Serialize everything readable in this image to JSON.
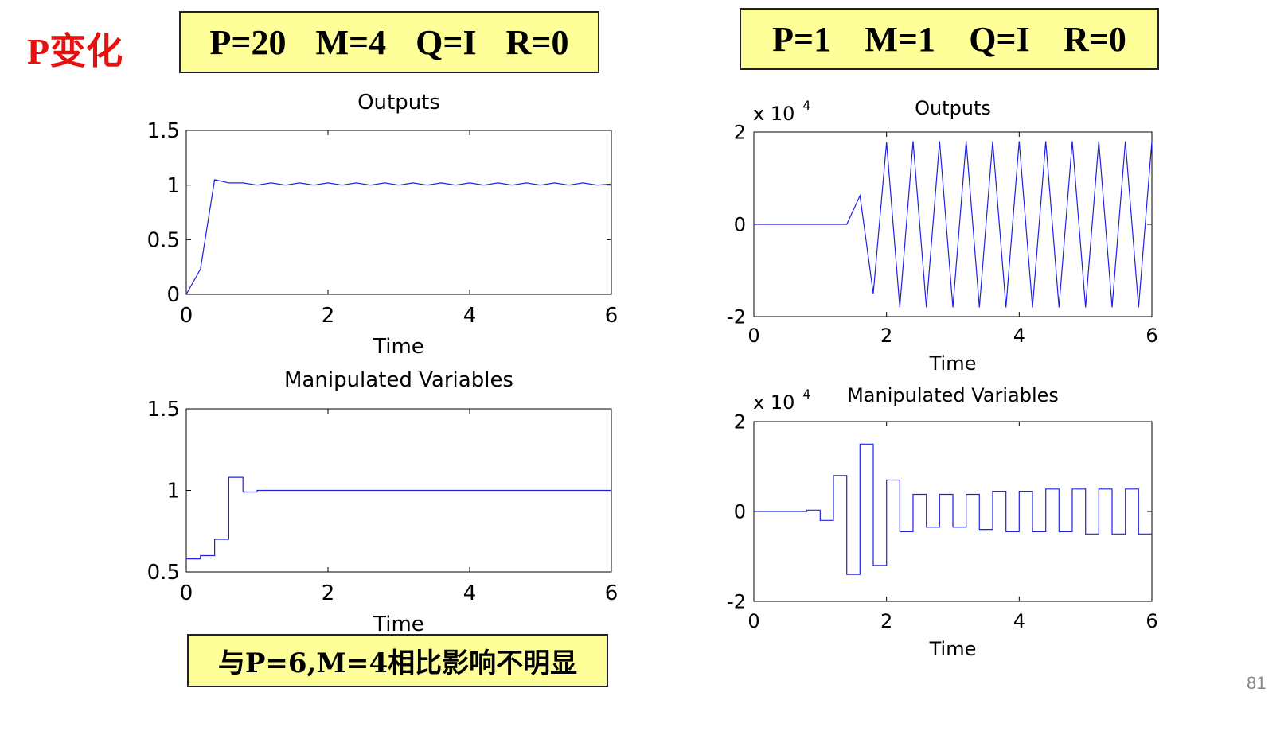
{
  "slide_title": "P变化",
  "left_params": [
    "P=20",
    "M=4",
    "Q=I",
    "R=0"
  ],
  "right_params": [
    "P=1",
    "M=1",
    "Q=I",
    "R=0"
  ],
  "note": "与P=6,M=4相比影响不明显",
  "page_number": "81",
  "colors": {
    "line": "#2020e0",
    "box_fill": "#ffff99",
    "title": "#e8110f"
  },
  "chart_data": [
    {
      "id": "left-outputs",
      "type": "line",
      "title": "Outputs",
      "xlabel": "Time",
      "ylabel": "",
      "xlim": [
        0,
        6
      ],
      "ylim": [
        0,
        1.5
      ],
      "xticks": [
        0,
        2,
        4,
        6
      ],
      "xtick_labels": [
        "0",
        "2",
        "4",
        "6"
      ],
      "yticks": [
        0,
        0.5,
        1,
        1.5
      ],
      "ytick_labels": [
        "0",
        "0.5",
        "1",
        "1.5"
      ],
      "multiplier": "",
      "x": [
        0,
        0.2,
        0.4,
        0.6,
        0.8,
        1.0,
        1.2,
        1.4,
        1.6,
        1.8,
        2.0,
        2.2,
        2.4,
        2.6,
        2.8,
        3.0,
        3.2,
        3.4,
        3.6,
        3.8,
        4.0,
        4.2,
        4.4,
        4.6,
        4.8,
        5.0,
        5.2,
        5.4,
        5.6,
        5.8,
        6.0
      ],
      "y": [
        0,
        0.23,
        1.05,
        1.02,
        1.02,
        1.0,
        1.02,
        1.0,
        1.02,
        1.0,
        1.02,
        1.0,
        1.02,
        1.0,
        1.02,
        1.0,
        1.02,
        1.0,
        1.02,
        1.0,
        1.02,
        1.0,
        1.02,
        1.0,
        1.02,
        1.0,
        1.02,
        1.0,
        1.02,
        1.0,
        1.01
      ],
      "step": false
    },
    {
      "id": "left-mv",
      "type": "line",
      "title": "Manipulated Variables",
      "xlabel": "Time",
      "ylabel": "",
      "xlim": [
        0,
        6
      ],
      "ylim": [
        0.5,
        1.5
      ],
      "xticks": [
        0,
        2,
        4,
        6
      ],
      "xtick_labels": [
        "0",
        "2",
        "4",
        "6"
      ],
      "yticks": [
        0.5,
        1,
        1.5
      ],
      "ytick_labels": [
        "0.5",
        "1",
        "1.5"
      ],
      "multiplier": "",
      "x": [
        0,
        0.2,
        0.4,
        0.6,
        0.8,
        1.0,
        6.0
      ],
      "y": [
        0.58,
        0.6,
        0.7,
        1.08,
        0.99,
        1.0,
        1.0
      ],
      "step": true
    },
    {
      "id": "right-outputs",
      "type": "line",
      "title": "Outputs",
      "xlabel": "Time",
      "ylabel": "",
      "xlim": [
        0,
        6
      ],
      "ylim": [
        -20000,
        20000
      ],
      "xticks": [
        0,
        2,
        4,
        6
      ],
      "xtick_labels": [
        "0",
        "2",
        "4",
        "6"
      ],
      "yticks": [
        -20000,
        0,
        20000
      ],
      "ytick_labels": [
        "-2",
        "0",
        "2"
      ],
      "multiplier": "x 10",
      "multiplier_exp": "4",
      "x": [
        0,
        1.4,
        1.6,
        1.8,
        2.0,
        2.2,
        2.4,
        2.6,
        2.8,
        3.0,
        3.2,
        3.4,
        3.6,
        3.8,
        4.0,
        4.2,
        4.4,
        4.6,
        4.8,
        5.0,
        5.2,
        5.4,
        5.6,
        5.8,
        6.0
      ],
      "y": [
        0,
        0,
        6200,
        -15000,
        17800,
        -18000,
        18000,
        -18000,
        18000,
        -18000,
        18000,
        -18000,
        18000,
        -18000,
        18000,
        -18000,
        18000,
        -18000,
        18000,
        -18000,
        18000,
        -18000,
        18000,
        -18000,
        18000
      ],
      "step": false
    },
    {
      "id": "right-mv",
      "type": "line",
      "title": "Manipulated Variables",
      "xlabel": "Time",
      "ylabel": "",
      "xlim": [
        0,
        6
      ],
      "ylim": [
        -20000,
        20000
      ],
      "xticks": [
        0,
        2,
        4,
        6
      ],
      "xtick_labels": [
        "0",
        "2",
        "4",
        "6"
      ],
      "yticks": [
        -20000,
        0,
        20000
      ],
      "ytick_labels": [
        "-2",
        "0",
        "2"
      ],
      "multiplier": "x 10",
      "multiplier_exp": "4",
      "x": [
        0,
        0.8,
        1.0,
        1.2,
        1.4,
        1.6,
        1.8,
        2.0,
        2.2,
        2.4,
        2.6,
        2.8,
        3.0,
        3.2,
        3.4,
        3.6,
        3.8,
        4.0,
        4.2,
        4.4,
        4.6,
        4.8,
        5.0,
        5.2,
        5.4,
        5.6,
        5.8,
        6.0
      ],
      "y": [
        0,
        300,
        -2000,
        8000,
        -14000,
        15000,
        -12000,
        7000,
        -4500,
        3800,
        -3500,
        3800,
        -3500,
        3800,
        -4000,
        4500,
        -4500,
        4500,
        -4500,
        5000,
        -4500,
        5000,
        -5000,
        5000,
        -5000,
        5000,
        -5000,
        -5000
      ],
      "step": true
    }
  ]
}
